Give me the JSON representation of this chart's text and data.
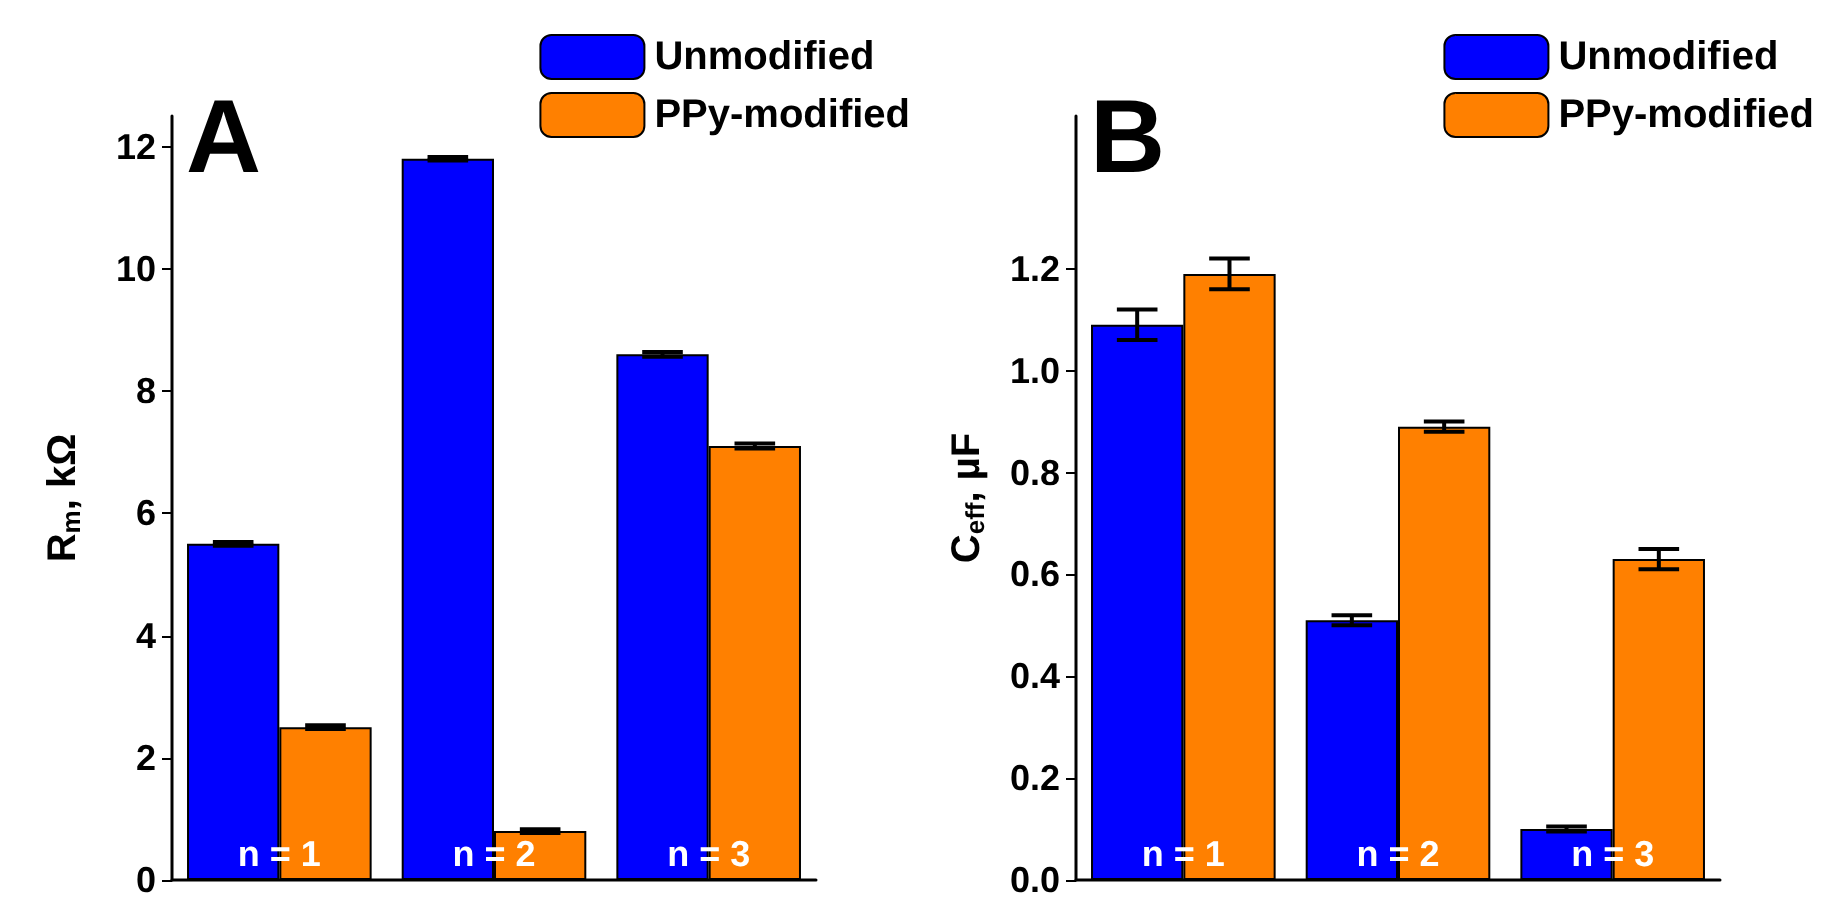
{
  "chart_data": [
    {
      "type": "bar",
      "title": "A",
      "ylabel": "R$_{m}$, kΩ",
      "categories": [
        "n = 1",
        "n = 2",
        "n = 3"
      ],
      "series": [
        {
          "name": "Unmodified",
          "color": "#0000ff",
          "values": [
            5.5,
            11.8,
            8.6
          ],
          "errors": [
            0.03,
            0.03,
            0.04
          ]
        },
        {
          "name": "PPy-modified",
          "color": "#ff8000",
          "values": [
            2.5,
            0.8,
            7.1
          ],
          "errors": [
            0.03,
            0.03,
            0.04
          ]
        }
      ],
      "ylim": [
        0,
        12.5
      ],
      "yticks": [
        0,
        2,
        4,
        6,
        8,
        10,
        12
      ],
      "grid": false,
      "legend": "top right"
    },
    {
      "type": "bar",
      "title": "B",
      "ylabel": "C$_{eff}$, µF",
      "categories": [
        "n = 1",
        "n = 2",
        "n = 3"
      ],
      "series": [
        {
          "name": "Unmodified",
          "color": "#0000ff",
          "values": [
            1.09,
            0.51,
            0.1
          ],
          "errors": [
            0.03,
            0.01,
            0.005
          ]
        },
        {
          "name": "PPy-modified",
          "color": "#ff8000",
          "values": [
            1.19,
            0.89,
            0.63
          ],
          "errors": [
            0.03,
            0.01,
            0.02
          ]
        }
      ],
      "ylim": [
        0,
        1.5
      ],
      "yticks": [
        {
          "value": 0,
          "label": "0.0"
        },
        0.2,
        0.4,
        0.6,
        0.8,
        {
          "value": 1,
          "label": "1.0"
        },
        1.2
      ],
      "grid": false,
      "legend": "top right"
    }
  ]
}
